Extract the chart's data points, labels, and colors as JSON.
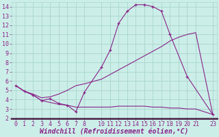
{
  "bg_color": "#cceee8",
  "grid_color": "#aad8d0",
  "line_color": "#882288",
  "xlabel": "Windchill (Refroidissement éolien,°C)",
  "xlim": [
    -0.5,
    23.5
  ],
  "ylim": [
    2,
    14.5
  ],
  "xticks": [
    0,
    1,
    2,
    3,
    4,
    5,
    6,
    7,
    8,
    10,
    11,
    12,
    13,
    14,
    15,
    16,
    17,
    18,
    19,
    20,
    21,
    23
  ],
  "yticks": [
    2,
    3,
    4,
    5,
    6,
    7,
    8,
    9,
    10,
    11,
    12,
    13,
    14
  ],
  "line1_x": [
    0,
    1,
    2,
    3,
    4,
    5,
    6,
    7,
    8,
    10,
    11,
    12,
    13,
    14,
    15,
    16,
    17,
    18,
    20,
    23
  ],
  "line1_y": [
    5.5,
    4.9,
    4.5,
    3.9,
    4.1,
    3.6,
    3.4,
    2.7,
    4.8,
    7.5,
    9.3,
    12.2,
    13.5,
    14.2,
    14.2,
    14.0,
    13.5,
    11.0,
    6.5,
    2.4
  ],
  "line2_x": [
    0,
    1,
    2,
    3,
    4,
    5,
    6,
    7,
    8,
    10,
    11,
    12,
    13,
    14,
    15,
    16,
    17,
    18,
    19,
    20,
    21,
    23
  ],
  "line2_y": [
    5.5,
    4.9,
    4.5,
    3.9,
    3.7,
    3.5,
    3.4,
    3.2,
    3.2,
    3.2,
    3.2,
    3.3,
    3.3,
    3.3,
    3.3,
    3.2,
    3.2,
    3.1,
    3.1,
    3.0,
    3.0,
    2.4
  ],
  "line3_x": [
    0,
    1,
    2,
    3,
    4,
    5,
    6,
    7,
    8,
    10,
    11,
    12,
    13,
    14,
    15,
    16,
    17,
    18,
    19,
    20,
    21,
    23
  ],
  "line3_y": [
    5.5,
    4.9,
    4.6,
    4.2,
    4.3,
    4.6,
    5.0,
    5.5,
    5.7,
    6.2,
    6.7,
    7.2,
    7.7,
    8.2,
    8.7,
    9.2,
    9.7,
    10.3,
    10.7,
    11.0,
    11.2,
    2.4
  ]
}
